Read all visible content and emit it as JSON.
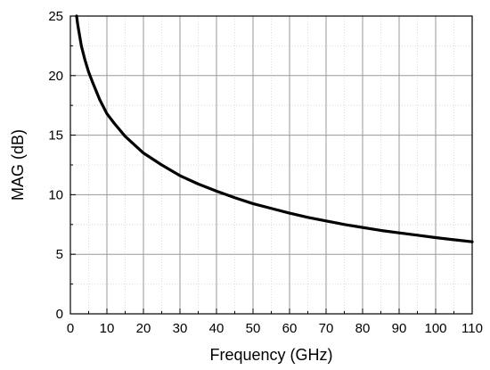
{
  "chart_data": {
    "type": "line",
    "xlabel": "Frequency (GHz)",
    "ylabel": "MAG (dB)",
    "xlim": [
      0,
      110
    ],
    "ylim": [
      0,
      25
    ],
    "xticks": [
      "0",
      "10",
      "20",
      "30",
      "40",
      "50",
      "60",
      "70",
      "80",
      "90",
      "100",
      "110"
    ],
    "yticks": [
      "0",
      "5",
      "10",
      "15",
      "20",
      "25"
    ],
    "grid": true,
    "series": [
      {
        "color": "#000000",
        "x": [
          1.7,
          2,
          3,
          4,
          5,
          6,
          8,
          10,
          12,
          15,
          20,
          25,
          30,
          35,
          40,
          45,
          50,
          55,
          60,
          65,
          70,
          75,
          80,
          85,
          90,
          95,
          100,
          105,
          110
        ],
        "y": [
          25,
          24.3,
          22.5,
          21.3,
          20.3,
          19.5,
          18.0,
          16.8,
          16.0,
          14.9,
          13.5,
          12.5,
          11.6,
          10.9,
          10.3,
          9.75,
          9.25,
          8.85,
          8.45,
          8.1,
          7.8,
          7.5,
          7.25,
          7.0,
          6.8,
          6.6,
          6.4,
          6.22,
          6.05
        ]
      }
    ]
  }
}
